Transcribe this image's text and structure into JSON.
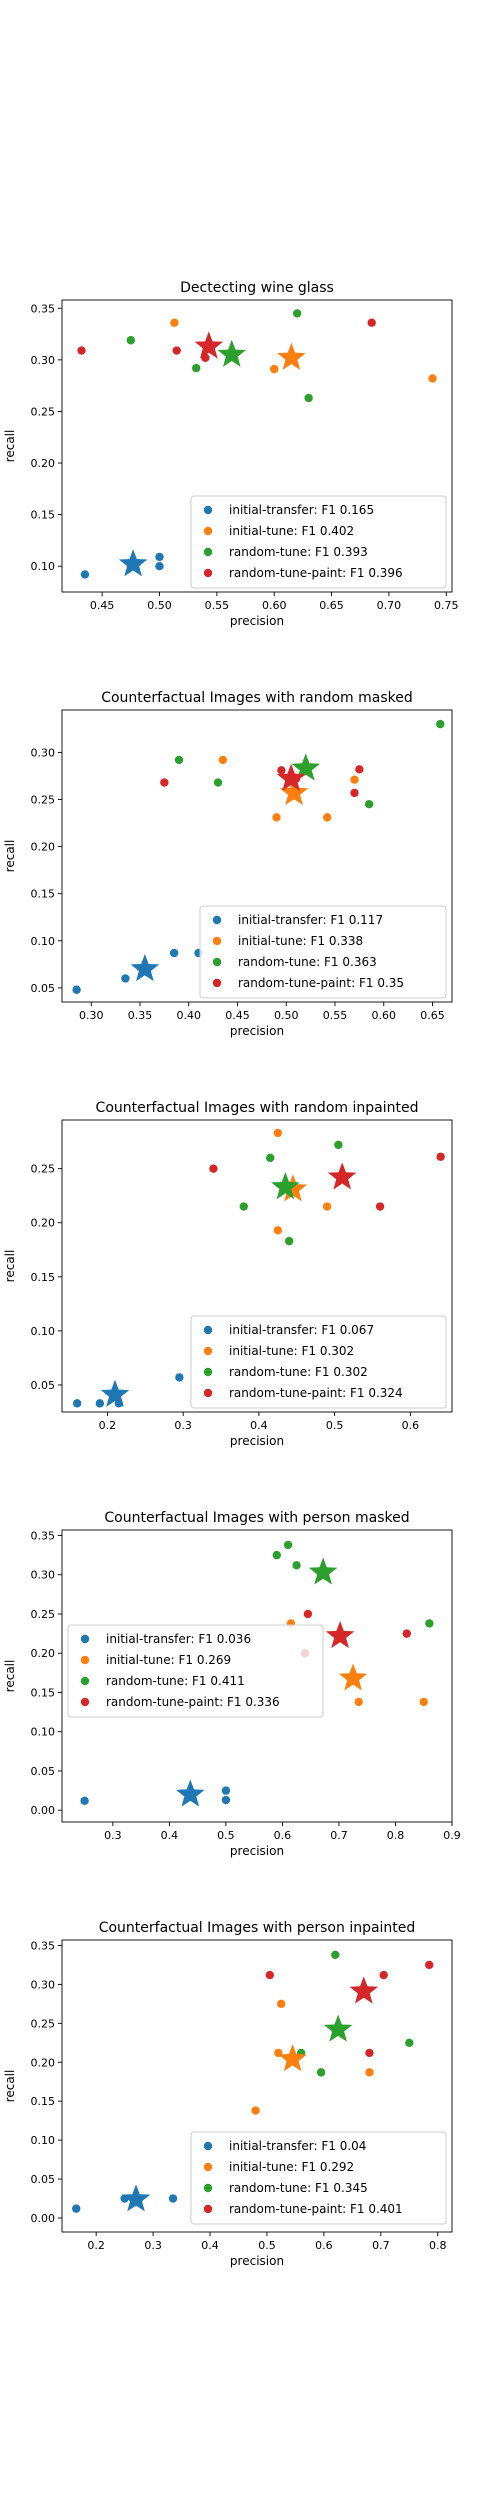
{
  "colors": {
    "initial-transfer": "#1f77b4",
    "initial-tune": "#ff7f0e",
    "random-tune": "#2ca02c",
    "random-tune-paint": "#d62728"
  },
  "chart_data": [
    {
      "type": "scatter",
      "title": "Dectecting wine glass",
      "xlabel": "precision",
      "ylabel": "recall",
      "xlim": [
        0.415,
        0.755
      ],
      "ylim": [
        0.075,
        0.358
      ],
      "xticks": [
        0.45,
        0.5,
        0.55,
        0.6,
        0.65,
        0.7,
        0.75
      ],
      "xtick_labels": [
        "0.45",
        "0.50",
        "0.55",
        "0.60",
        "0.65",
        "0.70",
        "0.75"
      ],
      "yticks": [
        0.1,
        0.15,
        0.2,
        0.25,
        0.3,
        0.35
      ],
      "ytick_labels": [
        "0.10",
        "0.15",
        "0.20",
        "0.25",
        "0.30",
        "0.35"
      ],
      "grid": false,
      "legend_position": "lower-right",
      "series": [
        {
          "key": "initial-transfer",
          "label": "initial-transfer: F1 0.165",
          "points": [
            [
              0.435,
              0.092
            ],
            [
              0.5,
              0.1
            ],
            [
              0.5,
              0.109
            ]
          ],
          "star": [
            0.477,
            0.102
          ]
        },
        {
          "key": "initial-tune",
          "label": "initial-tune: F1 0.402",
          "points": [
            [
              0.513,
              0.336
            ],
            [
              0.6,
              0.291
            ],
            [
              0.738,
              0.282
            ]
          ],
          "star": [
            0.615,
            0.302
          ]
        },
        {
          "key": "random-tune",
          "label": "random-tune: F1 0.393",
          "points": [
            [
              0.475,
              0.319
            ],
            [
              0.532,
              0.292
            ],
            [
              0.62,
              0.345
            ],
            [
              0.63,
              0.263
            ]
          ],
          "star": [
            0.563,
            0.305
          ]
        },
        {
          "key": "random-tune-paint",
          "label": "random-tune-paint: F1 0.396",
          "points": [
            [
              0.432,
              0.309
            ],
            [
              0.515,
              0.309
            ],
            [
              0.54,
              0.302
            ],
            [
              0.685,
              0.336
            ]
          ],
          "star": [
            0.543,
            0.313
          ]
        }
      ]
    },
    {
      "type": "scatter",
      "title": "Counterfactual Images with random masked",
      "xlabel": "precision",
      "ylabel": "recall",
      "xlim": [
        0.27,
        0.67
      ],
      "ylim": [
        0.035,
        0.345
      ],
      "xticks": [
        0.3,
        0.35,
        0.4,
        0.45,
        0.5,
        0.55,
        0.6,
        0.65
      ],
      "xtick_labels": [
        "0.30",
        "0.35",
        "0.40",
        "0.45",
        "0.50",
        "0.55",
        "0.60",
        "0.65"
      ],
      "yticks": [
        0.05,
        0.1,
        0.15,
        0.2,
        0.25,
        0.3
      ],
      "ytick_labels": [
        "0.05",
        "0.10",
        "0.15",
        "0.20",
        "0.25",
        "0.30"
      ],
      "grid": false,
      "legend_position": "lower-right",
      "series": [
        {
          "key": "initial-transfer",
          "label": "initial-transfer: F1 0.117",
          "points": [
            [
              0.285,
              0.048
            ],
            [
              0.335,
              0.06
            ],
            [
              0.385,
              0.087
            ],
            [
              0.41,
              0.087
            ]
          ],
          "star": [
            0.355,
            0.07
          ]
        },
        {
          "key": "initial-tune",
          "label": "initial-tune: F1 0.338",
          "points": [
            [
              0.435,
              0.292
            ],
            [
              0.49,
              0.231
            ],
            [
              0.542,
              0.231
            ],
            [
              0.57,
              0.271
            ]
          ],
          "star": [
            0.508,
            0.257
          ]
        },
        {
          "key": "random-tune",
          "label": "random-tune: F1 0.363",
          "points": [
            [
              0.39,
              0.292
            ],
            [
              0.43,
              0.268
            ],
            [
              0.585,
              0.245
            ],
            [
              0.658,
              0.33
            ]
          ],
          "star": [
            0.52,
            0.283
          ]
        },
        {
          "key": "random-tune-paint",
          "label": "random-tune-paint: F1 0.35",
          "points": [
            [
              0.375,
              0.268
            ],
            [
              0.495,
              0.281
            ],
            [
              0.51,
              0.272
            ],
            [
              0.575,
              0.282
            ],
            [
              0.57,
              0.257
            ]
          ],
          "star": [
            0.505,
            0.272
          ]
        }
      ]
    },
    {
      "type": "scatter",
      "title": "Counterfactual Images with random inpainted",
      "xlabel": "precision",
      "ylabel": "recall",
      "xlim": [
        0.14,
        0.655
      ],
      "ylim": [
        0.025,
        0.295
      ],
      "xticks": [
        0.2,
        0.3,
        0.4,
        0.5,
        0.6
      ],
      "xtick_labels": [
        "0.2",
        "0.3",
        "0.4",
        "0.5",
        "0.6"
      ],
      "yticks": [
        0.05,
        0.1,
        0.15,
        0.2,
        0.25
      ],
      "ytick_labels": [
        "0.05",
        "0.10",
        "0.15",
        "0.20",
        "0.25"
      ],
      "grid": false,
      "legend_position": "lower-right",
      "series": [
        {
          "key": "initial-transfer",
          "label": "initial-transfer: F1 0.067",
          "points": [
            [
              0.16,
              0.033
            ],
            [
              0.19,
              0.033
            ],
            [
              0.215,
              0.033
            ],
            [
              0.295,
              0.057
            ]
          ],
          "star": [
            0.21,
            0.041
          ]
        },
        {
          "key": "initial-tune",
          "label": "initial-tune: F1 0.302",
          "points": [
            [
              0.425,
              0.283
            ],
            [
              0.425,
              0.193
            ],
            [
              0.49,
              0.215
            ]
          ],
          "star": [
            0.445,
            0.231
          ]
        },
        {
          "key": "random-tune",
          "label": "random-tune: F1 0.302",
          "points": [
            [
              0.38,
              0.215
            ],
            [
              0.415,
              0.26
            ],
            [
              0.44,
              0.183
            ],
            [
              0.505,
              0.272
            ]
          ],
          "star": [
            0.435,
            0.233
          ]
        },
        {
          "key": "random-tune-paint",
          "label": "random-tune-paint: F1 0.324",
          "points": [
            [
              0.34,
              0.25
            ],
            [
              0.56,
              0.215
            ],
            [
              0.64,
              0.261
            ]
          ],
          "star": [
            0.51,
            0.242
          ]
        }
      ]
    },
    {
      "type": "scatter",
      "title": "Counterfactual Images with person masked",
      "xlabel": "precision",
      "ylabel": "recall",
      "xlim": [
        0.21,
        0.9
      ],
      "ylim": [
        -0.015,
        0.357
      ],
      "xticks": [
        0.3,
        0.4,
        0.5,
        0.6,
        0.7,
        0.8,
        0.9
      ],
      "xtick_labels": [
        "0.3",
        "0.4",
        "0.5",
        "0.6",
        "0.7",
        "0.8",
        "0.9"
      ],
      "yticks": [
        0.0,
        0.05,
        0.1,
        0.15,
        0.2,
        0.25,
        0.3,
        0.35
      ],
      "ytick_labels": [
        "0.00",
        "0.05",
        "0.10",
        "0.15",
        "0.20",
        "0.25",
        "0.30",
        "0.35"
      ],
      "grid": false,
      "legend_position": "center-left",
      "series": [
        {
          "key": "initial-transfer",
          "label": "initial-transfer: F1 0.036",
          "points": [
            [
              0.25,
              0.012
            ],
            [
              0.5,
              0.013
            ],
            [
              0.5,
              0.025
            ]
          ],
          "star": [
            0.437,
            0.02
          ]
        },
        {
          "key": "initial-tune",
          "label": "initial-tune: F1 0.269",
          "points": [
            [
              0.615,
              0.238
            ],
            [
              0.735,
              0.138
            ],
            [
              0.85,
              0.138
            ]
          ],
          "star": [
            0.725,
            0.168
          ]
        },
        {
          "key": "random-tune",
          "label": "random-tune: F1 0.411",
          "points": [
            [
              0.59,
              0.325
            ],
            [
              0.61,
              0.338
            ],
            [
              0.625,
              0.312
            ],
            [
              0.86,
              0.238
            ]
          ],
          "star": [
            0.672,
            0.303
          ]
        },
        {
          "key": "random-tune-paint",
          "label": "random-tune-paint: F1 0.336",
          "points": [
            [
              0.645,
              0.25
            ],
            [
              0.64,
              0.2
            ],
            [
              0.82,
              0.225
            ]
          ],
          "star": [
            0.702,
            0.222
          ]
        }
      ]
    },
    {
      "type": "scatter",
      "title": "Counterfactual Images with person inpainted",
      "xlabel": "precision",
      "ylabel": "recall",
      "xlim": [
        0.14,
        0.825
      ],
      "ylim": [
        -0.018,
        0.357
      ],
      "xticks": [
        0.2,
        0.3,
        0.4,
        0.5,
        0.6,
        0.7,
        0.8
      ],
      "xtick_labels": [
        "0.2",
        "0.3",
        "0.4",
        "0.5",
        "0.6",
        "0.7",
        "0.8"
      ],
      "yticks": [
        0.0,
        0.05,
        0.1,
        0.15,
        0.2,
        0.25,
        0.3,
        0.35
      ],
      "ytick_labels": [
        "0.00",
        "0.05",
        "0.10",
        "0.15",
        "0.20",
        "0.25",
        "0.30",
        "0.35"
      ],
      "grid": false,
      "legend_position": "lower-right",
      "series": [
        {
          "key": "initial-transfer",
          "label": "initial-transfer: F1 0.04",
          "points": [
            [
              0.165,
              0.012
            ],
            [
              0.25,
              0.025
            ],
            [
              0.335,
              0.025
            ]
          ],
          "star": [
            0.27,
            0.024
          ]
        },
        {
          "key": "initial-tune",
          "label": "initial-tune: F1 0.292",
          "points": [
            [
              0.48,
              0.138
            ],
            [
              0.52,
              0.212
            ],
            [
              0.525,
              0.275
            ],
            [
              0.68,
              0.187
            ]
          ],
          "star": [
            0.545,
            0.204
          ]
        },
        {
          "key": "random-tune",
          "label": "random-tune: F1 0.345",
          "points": [
            [
              0.56,
              0.212
            ],
            [
              0.595,
              0.187
            ],
            [
              0.62,
              0.338
            ],
            [
              0.75,
              0.225
            ]
          ],
          "star": [
            0.625,
            0.242
          ]
        },
        {
          "key": "random-tune-paint",
          "label": "random-tune-paint: F1 0.401",
          "points": [
            [
              0.505,
              0.312
            ],
            [
              0.68,
              0.212
            ],
            [
              0.705,
              0.312
            ],
            [
              0.785,
              0.325
            ]
          ],
          "star": [
            0.67,
            0.291
          ]
        }
      ]
    }
  ]
}
